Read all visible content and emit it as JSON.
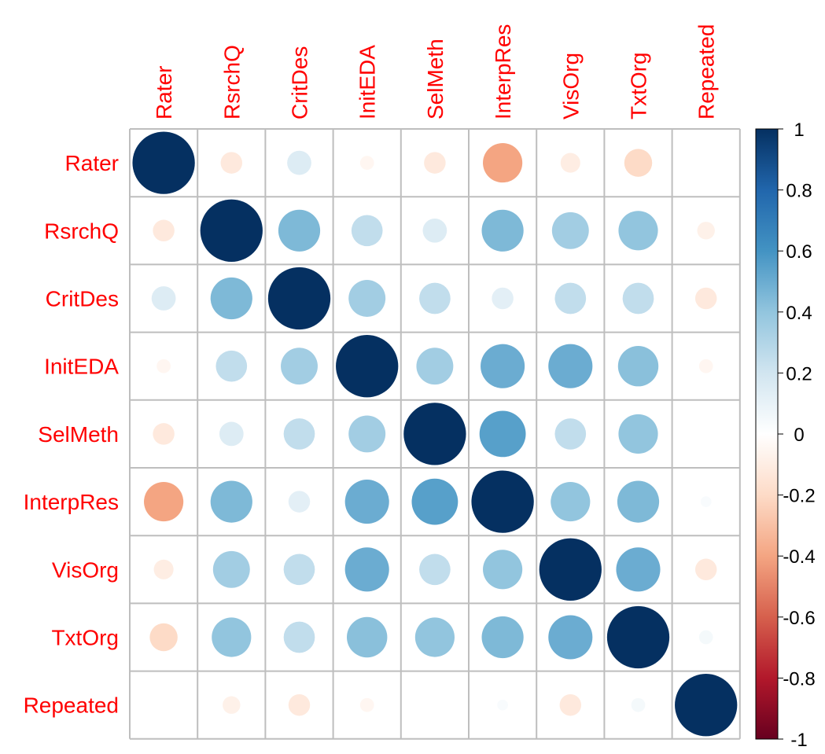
{
  "chart_data": {
    "type": "heatmap",
    "variables": [
      "Rater",
      "RsrchQ",
      "CritDes",
      "InitEDA",
      "SelMeth",
      "InterpRes",
      "VisOrg",
      "TxtOrg",
      "Repeated"
    ],
    "matrix": [
      [
        1.0,
        -0.12,
        0.15,
        -0.05,
        -0.12,
        -0.4,
        -0.1,
        -0.2,
        0.0
      ],
      [
        -0.12,
        1.0,
        0.45,
        0.25,
        0.15,
        0.45,
        0.35,
        0.4,
        -0.08
      ],
      [
        0.15,
        0.45,
        1.0,
        0.35,
        0.25,
        0.12,
        0.25,
        0.25,
        -0.12
      ],
      [
        -0.05,
        0.25,
        0.35,
        1.0,
        0.35,
        0.5,
        0.5,
        0.42,
        -0.05
      ],
      [
        -0.12,
        0.15,
        0.25,
        0.35,
        1.0,
        0.55,
        0.25,
        0.4,
        0.0
      ],
      [
        -0.4,
        0.45,
        0.12,
        0.5,
        0.55,
        1.0,
        0.4,
        0.45,
        0.03
      ],
      [
        -0.1,
        0.35,
        0.25,
        0.5,
        0.25,
        0.4,
        1.0,
        0.5,
        -0.12
      ],
      [
        -0.2,
        0.4,
        0.25,
        0.42,
        0.4,
        0.45,
        0.5,
        1.0,
        0.05
      ],
      [
        0.0,
        -0.08,
        -0.12,
        -0.05,
        0.0,
        0.03,
        -0.12,
        0.05,
        1.0
      ]
    ],
    "colorbar": {
      "range": [
        -1,
        1
      ],
      "ticks": [
        "1",
        "0.8",
        "0.6",
        "0.4",
        "0.2",
        "0",
        "-0.2",
        "-0.4",
        "-0.6",
        "-0.8",
        "-1"
      ]
    },
    "label_color": "#ff0000",
    "grid_color": "#bebebe"
  }
}
